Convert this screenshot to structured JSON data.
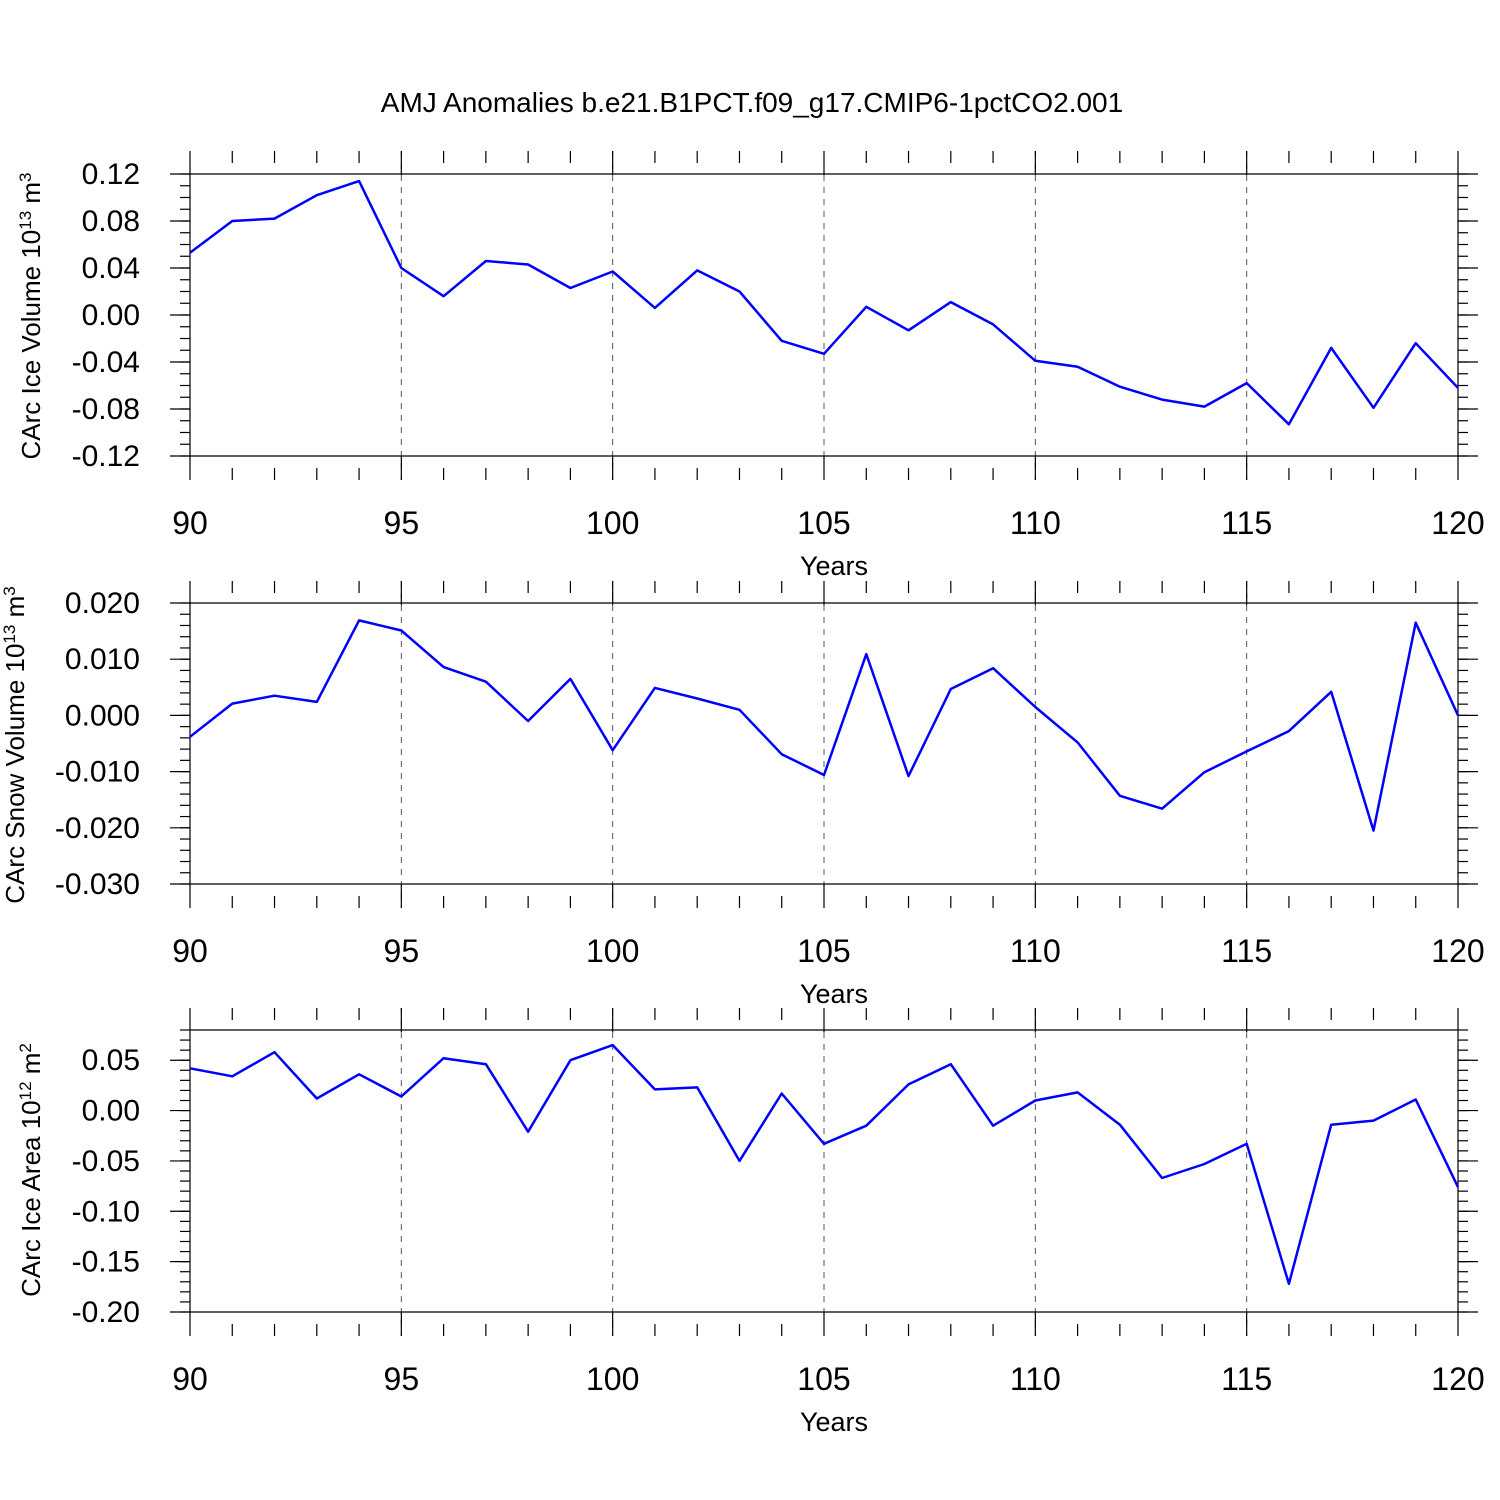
{
  "figure": {
    "title": "AMJ Anomalies b.e21.B1PCT.f09_g17.CMIP6-1pctCO2.001",
    "line_color": "#0000ff"
  },
  "chart_data": [
    {
      "type": "line",
      "ylabel_main": "CArc Ice Volume 10",
      "ylabel_exp": "13",
      "ylabel_unit": " m",
      "ylabel_unit_exp": "3",
      "xlabel": "Years",
      "xlim": [
        90,
        120
      ],
      "ylim": [
        -0.12,
        0.12
      ],
      "y_top_frame": 0.12,
      "xticks": [
        "90",
        "95",
        "100",
        "105",
        "110",
        "115",
        "120"
      ],
      "xtick_values": [
        90,
        95,
        100,
        105,
        110,
        115,
        120
      ],
      "yticks": [
        "0.12",
        "0.08",
        "0.04",
        "0.00",
        "-0.04",
        "-0.08",
        "-0.12"
      ],
      "ytick_values": [
        0.12,
        0.08,
        0.04,
        0.0,
        -0.04,
        -0.08,
        -0.12
      ],
      "y_minor_step": 0.01,
      "grid": "dashed vertical at major x ticks",
      "x": [
        90,
        91,
        92,
        93,
        94,
        95,
        96,
        97,
        98,
        99,
        100,
        101,
        102,
        103,
        104,
        105,
        106,
        107,
        108,
        109,
        110,
        111,
        112,
        113,
        114,
        115,
        116,
        117,
        118,
        119,
        120
      ],
      "y": [
        0.053,
        0.08,
        0.082,
        0.102,
        0.114,
        0.04,
        0.016,
        0.046,
        0.043,
        0.023,
        0.037,
        0.006,
        0.038,
        0.02,
        -0.022,
        -0.033,
        0.007,
        -0.013,
        0.011,
        -0.008,
        -0.039,
        -0.044,
        -0.061,
        -0.072,
        -0.078,
        -0.058,
        -0.093,
        -0.028,
        -0.079,
        -0.024,
        -0.062
      ]
    },
    {
      "type": "line",
      "ylabel_main": "CArc Snow Volume 10",
      "ylabel_exp": "13",
      "ylabel_unit": " m",
      "ylabel_unit_exp": "3",
      "xlabel": "Years",
      "xlim": [
        90,
        120
      ],
      "ylim": [
        -0.03,
        0.02
      ],
      "y_top_frame": 0.02,
      "xticks": [
        "90",
        "95",
        "100",
        "105",
        "110",
        "115",
        "120"
      ],
      "xtick_values": [
        90,
        95,
        100,
        105,
        110,
        115,
        120
      ],
      "yticks": [
        "0.020",
        "0.010",
        "0.000",
        "-0.010",
        "-0.020",
        "-0.030"
      ],
      "ytick_values": [
        0.02,
        0.01,
        0.0,
        -0.01,
        -0.02,
        -0.03
      ],
      "y_minor_step": 0.002,
      "grid": "dashed vertical at major x ticks",
      "x": [
        90,
        91,
        92,
        93,
        94,
        95,
        96,
        97,
        98,
        99,
        100,
        101,
        102,
        103,
        104,
        105,
        106,
        107,
        108,
        109,
        110,
        111,
        112,
        113,
        114,
        115,
        116,
        117,
        118,
        119,
        120
      ],
      "y": [
        -0.0038,
        0.0021,
        0.0035,
        0.0024,
        0.0169,
        0.0151,
        0.0086,
        0.006,
        -0.001,
        0.0065,
        -0.0062,
        0.0049,
        0.003,
        0.001,
        -0.0069,
        -0.0106,
        0.0109,
        -0.0108,
        0.0047,
        0.0084,
        0.0015,
        -0.0048,
        -0.0143,
        -0.0166,
        -0.0101,
        -0.0064,
        -0.0028,
        0.0042,
        -0.0205,
        0.0165,
        0.0
      ]
    },
    {
      "type": "line",
      "ylabel_main": "CArc Ice Area 10",
      "ylabel_exp": "12",
      "ylabel_unit": " m",
      "ylabel_unit_exp": "2",
      "xlabel": "Years",
      "xlim": [
        90,
        120
      ],
      "ylim": [
        -0.2,
        0.08
      ],
      "y_top_frame": 0.08,
      "xticks": [
        "90",
        "95",
        "100",
        "105",
        "110",
        "115",
        "120"
      ],
      "xtick_values": [
        90,
        95,
        100,
        105,
        110,
        115,
        120
      ],
      "yticks": [
        "0.05",
        "0.00",
        "-0.05",
        "-0.10",
        "-0.15",
        "-0.20"
      ],
      "ytick_values": [
        0.05,
        0.0,
        -0.05,
        -0.1,
        -0.15,
        -0.2
      ],
      "y_minor_step": 0.01,
      "grid": "dashed vertical at major x ticks",
      "x": [
        90,
        91,
        92,
        93,
        94,
        95,
        96,
        97,
        98,
        99,
        100,
        101,
        102,
        103,
        104,
        105,
        106,
        107,
        108,
        109,
        110,
        111,
        112,
        113,
        114,
        115,
        116,
        117,
        118,
        119,
        120
      ],
      "y": [
        0.042,
        0.034,
        0.058,
        0.012,
        0.036,
        0.014,
        0.052,
        0.046,
        -0.021,
        0.05,
        0.065,
        0.021,
        0.023,
        -0.05,
        0.017,
        -0.033,
        -0.015,
        0.026,
        0.046,
        -0.015,
        0.01,
        0.018,
        -0.014,
        -0.067,
        -0.053,
        -0.033,
        -0.172,
        -0.014,
        -0.01,
        0.011,
        -0.076
      ]
    }
  ]
}
